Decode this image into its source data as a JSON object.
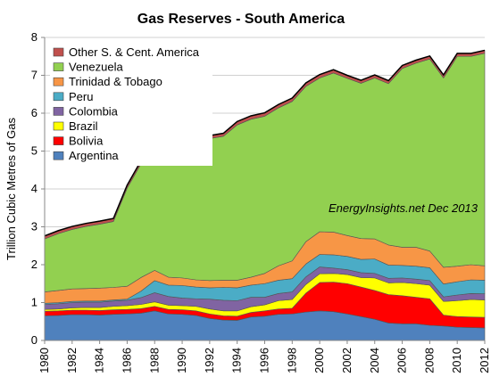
{
  "chart_data": {
    "type": "area",
    "stacked": true,
    "title": "Gas Reserves - South America",
    "xlabel": "",
    "ylabel": "Trillion Cubic Metres of Gas",
    "annotation": "EnergyInsights.net  Dec 2013",
    "xlim": [
      1980,
      2012
    ],
    "ylim": [
      0,
      8
    ],
    "yticks": [
      0,
      1,
      2,
      3,
      4,
      5,
      6,
      7,
      8
    ],
    "xticks": [
      1980,
      1982,
      1984,
      1986,
      1988,
      1990,
      1992,
      1994,
      1996,
      1998,
      2000,
      2002,
      2004,
      2006,
      2008,
      2010,
      2012
    ],
    "grid": "horizontal",
    "legend_position": "top-left",
    "x": [
      1980,
      1981,
      1982,
      1983,
      1984,
      1985,
      1986,
      1987,
      1988,
      1989,
      1990,
      1991,
      1992,
      1993,
      1994,
      1995,
      1996,
      1997,
      1998,
      1999,
      2000,
      2001,
      2002,
      2003,
      2004,
      2005,
      2006,
      2007,
      2008,
      2009,
      2010,
      2011,
      2012
    ],
    "series": [
      {
        "name": "Argentina",
        "color": "#4f81bd",
        "values": [
          0.65,
          0.66,
          0.68,
          0.68,
          0.67,
          0.69,
          0.7,
          0.72,
          0.78,
          0.7,
          0.69,
          0.66,
          0.58,
          0.54,
          0.53,
          0.62,
          0.64,
          0.69,
          0.7,
          0.75,
          0.78,
          0.76,
          0.7,
          0.63,
          0.56,
          0.46,
          0.44,
          0.44,
          0.4,
          0.38,
          0.35,
          0.34,
          0.33
        ]
      },
      {
        "name": "Bolivia",
        "color": "#ff0000",
        "values": [
          0.12,
          0.12,
          0.12,
          0.12,
          0.12,
          0.12,
          0.12,
          0.12,
          0.12,
          0.12,
          0.12,
          0.12,
          0.12,
          0.11,
          0.11,
          0.12,
          0.14,
          0.14,
          0.15,
          0.5,
          0.75,
          0.78,
          0.8,
          0.78,
          0.76,
          0.75,
          0.74,
          0.7,
          0.7,
          0.29,
          0.28,
          0.28,
          0.28
        ]
      },
      {
        "name": "Brazil",
        "color": "#ffff00",
        "values": [
          0.05,
          0.05,
          0.06,
          0.07,
          0.08,
          0.09,
          0.1,
          0.11,
          0.12,
          0.11,
          0.11,
          0.12,
          0.13,
          0.13,
          0.14,
          0.15,
          0.16,
          0.22,
          0.23,
          0.23,
          0.23,
          0.23,
          0.24,
          0.25,
          0.33,
          0.31,
          0.35,
          0.36,
          0.36,
          0.36,
          0.42,
          0.46,
          0.46
        ]
      },
      {
        "name": "Colombia",
        "color": "#8064a2",
        "values": [
          0.13,
          0.14,
          0.14,
          0.14,
          0.14,
          0.14,
          0.14,
          0.18,
          0.24,
          0.23,
          0.2,
          0.2,
          0.26,
          0.28,
          0.27,
          0.25,
          0.2,
          0.19,
          0.2,
          0.2,
          0.18,
          0.14,
          0.13,
          0.13,
          0.12,
          0.12,
          0.12,
          0.12,
          0.12,
          0.12,
          0.15,
          0.16,
          0.16
        ]
      },
      {
        "name": "Peru",
        "color": "#4bacc6",
        "values": [
          0.03,
          0.03,
          0.03,
          0.03,
          0.03,
          0.03,
          0.03,
          0.17,
          0.32,
          0.3,
          0.33,
          0.31,
          0.3,
          0.34,
          0.34,
          0.32,
          0.36,
          0.35,
          0.35,
          0.34,
          0.33,
          0.35,
          0.35,
          0.35,
          0.38,
          0.35,
          0.33,
          0.34,
          0.34,
          0.34,
          0.35,
          0.36,
          0.36
        ]
      },
      {
        "name": "Trinidad & Tobago",
        "color": "#f79646",
        "values": [
          0.3,
          0.32,
          0.33,
          0.33,
          0.34,
          0.33,
          0.34,
          0.36,
          0.27,
          0.21,
          0.2,
          0.19,
          0.19,
          0.19,
          0.2,
          0.21,
          0.27,
          0.38,
          0.47,
          0.59,
          0.6,
          0.6,
          0.55,
          0.55,
          0.53,
          0.53,
          0.48,
          0.5,
          0.44,
          0.44,
          0.41,
          0.4,
          0.38
        ]
      },
      {
        "name": "Venezuela",
        "color": "#92d050",
        "values": [
          1.4,
          1.5,
          1.57,
          1.64,
          1.69,
          1.74,
          2.59,
          3.0,
          3.0,
          3.18,
          3.5,
          3.63,
          3.75,
          3.8,
          4.1,
          4.17,
          4.15,
          4.17,
          4.21,
          4.1,
          4.06,
          4.2,
          4.15,
          4.1,
          4.25,
          4.26,
          4.72,
          4.86,
          5.07,
          5.0,
          5.54,
          5.5,
          5.61
        ]
      },
      {
        "name": "Other S. & Cent. America",
        "color": "#c0504d",
        "values": [
          0.08,
          0.08,
          0.08,
          0.08,
          0.08,
          0.08,
          0.08,
          0.08,
          0.08,
          0.08,
          0.08,
          0.08,
          0.08,
          0.08,
          0.09,
          0.09,
          0.09,
          0.09,
          0.09,
          0.09,
          0.09,
          0.09,
          0.08,
          0.08,
          0.08,
          0.08,
          0.08,
          0.08,
          0.08,
          0.08,
          0.08,
          0.08,
          0.08
        ]
      }
    ]
  }
}
